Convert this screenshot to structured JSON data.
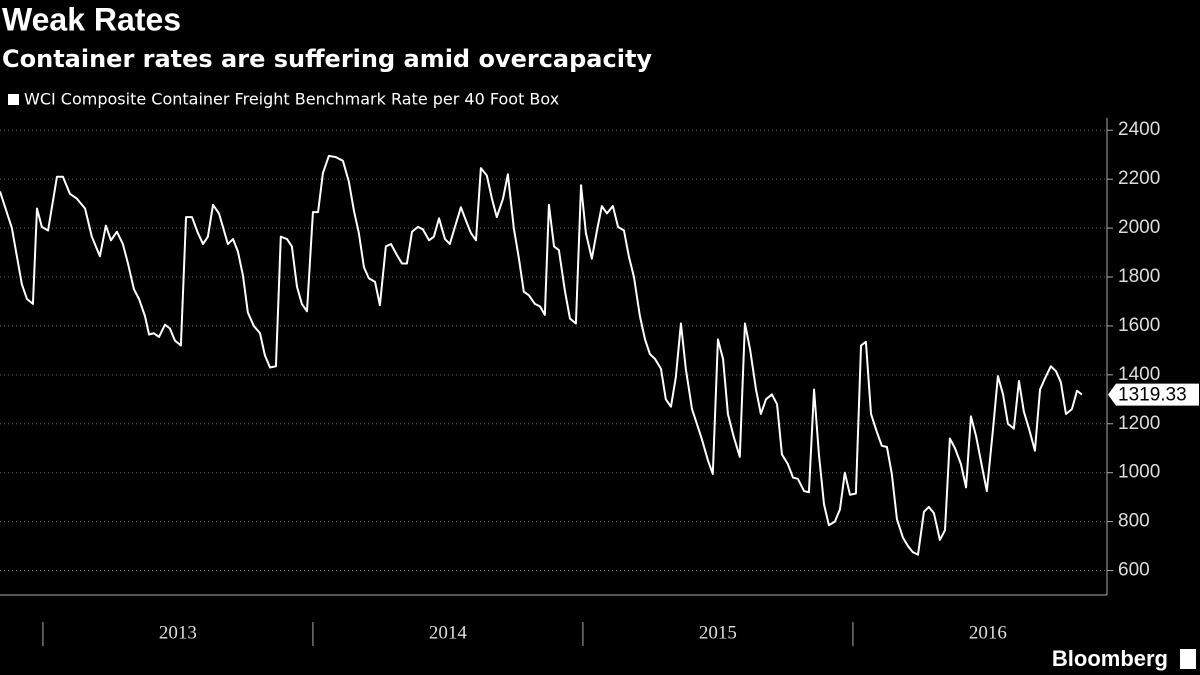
{
  "chart_data": {
    "type": "line",
    "title": "Weak Rates",
    "subtitle": "Container rates are suffering amid overcapacity",
    "source": "Bloomberg",
    "x": [
      2012.841,
      2012.885,
      2012.922,
      2012.941,
      2012.963,
      2012.978,
      2012.996,
      2013.019,
      2013.052,
      2013.074,
      2013.1,
      2013.126,
      2013.156,
      2013.181,
      2013.211,
      2013.233,
      2013.252,
      2013.274,
      2013.296,
      2013.315,
      2013.337,
      2013.356,
      2013.378,
      2013.393,
      2013.411,
      2013.43,
      2013.452,
      2013.47,
      2013.489,
      2013.511,
      2013.53,
      2013.552,
      2013.574,
      2013.593,
      2013.611,
      2013.63,
      2013.652,
      2013.685,
      2013.704,
      2013.722,
      2013.741,
      2013.759,
      2013.781,
      2013.804,
      2013.822,
      2013.841,
      2013.863,
      2013.881,
      2013.904,
      2013.922,
      2013.941,
      2013.959,
      2013.978,
      2014.0,
      2014.019,
      2014.037,
      2014.059,
      2014.085,
      2014.111,
      2014.133,
      2014.152,
      2014.17,
      2014.189,
      2014.207,
      2014.23,
      2014.248,
      2014.27,
      2014.289,
      2014.311,
      2014.33,
      2014.348,
      2014.367,
      2014.389,
      2014.407,
      2014.43,
      2014.448,
      2014.467,
      2014.489,
      2014.507,
      2014.526,
      2014.548,
      2014.567,
      2014.585,
      2014.604,
      2014.622,
      2014.644,
      2014.663,
      2014.681,
      2014.704,
      2014.722,
      2014.744,
      2014.763,
      2014.781,
      2014.8,
      2014.822,
      2014.841,
      2014.859,
      2014.874,
      2014.893,
      2014.911,
      2014.933,
      2014.952,
      2014.974,
      2014.993,
      2015.011,
      2015.033,
      2015.052,
      2015.07,
      2015.089,
      2015.111,
      2015.13,
      2015.152,
      2015.17,
      2015.189,
      2015.211,
      2015.23,
      2015.248,
      2015.267,
      2015.289,
      2015.307,
      2015.326,
      2015.344,
      2015.363,
      2015.381,
      2015.404,
      2015.422,
      2015.441,
      2015.463,
      2015.481,
      2015.5,
      2015.519,
      2015.537,
      2015.559,
      2015.581,
      2015.6,
      2015.619,
      2015.641,
      2015.659,
      2015.678,
      2015.7,
      2015.719,
      2015.737,
      2015.759,
      2015.778,
      2015.796,
      2015.819,
      2015.837,
      2015.856,
      2015.874,
      2015.893,
      2015.911,
      2015.933,
      2015.952,
      2015.97,
      2015.989,
      2016.011,
      2016.03,
      2016.048,
      2016.067,
      2016.089,
      2016.107,
      2016.126,
      2016.144,
      2016.163,
      2016.185,
      2016.204,
      2016.222,
      2016.241,
      2016.263,
      2016.281,
      2016.3,
      2016.322,
      2016.341,
      2016.359,
      2016.378,
      2016.4,
      2016.419,
      2016.437,
      2016.456,
      2016.478,
      2016.496,
      2016.519,
      2016.537,
      2016.556,
      2016.574,
      2016.596,
      2016.615,
      2016.633,
      2016.652,
      2016.674,
      2016.693,
      2016.711,
      2016.733,
      2016.752,
      2016.77,
      2016.789,
      2016.811,
      2016.83,
      2016.848
    ],
    "series": [
      {
        "name": "WCI Composite Container Freight Benchmark Rate per 40 Foot Box",
        "color": "#ffffff",
        "values": [
          2150,
          2000,
          1770,
          1710,
          1690,
          2080,
          2005,
          1990,
          2210,
          2210,
          2140,
          2120,
          2080,
          1965,
          1885,
          2010,
          1950,
          1985,
          1935,
          1855,
          1750,
          1710,
          1640,
          1565,
          1570,
          1555,
          1605,
          1590,
          1540,
          1520,
          2045,
          2045,
          1980,
          1935,
          1965,
          2095,
          2060,
          1935,
          1955,
          1905,
          1805,
          1655,
          1600,
          1570,
          1480,
          1430,
          1435,
          1965,
          1955,
          1925,
          1760,
          1690,
          1660,
          2065,
          2065,
          2225,
          2295,
          2290,
          2275,
          2190,
          2070,
          1980,
          1840,
          1795,
          1780,
          1685,
          1925,
          1935,
          1890,
          1855,
          1855,
          1985,
          2005,
          1995,
          1950,
          1965,
          2040,
          1955,
          1935,
          2005,
          2085,
          2030,
          1980,
          1950,
          2245,
          2215,
          2120,
          2045,
          2120,
          2220,
          2000,
          1875,
          1740,
          1725,
          1690,
          1680,
          1645,
          2095,
          1925,
          1910,
          1745,
          1630,
          1610,
          2175,
          1980,
          1875,
          1990,
          2090,
          2060,
          2090,
          2005,
          1990,
          1885,
          1800,
          1640,
          1545,
          1485,
          1465,
          1425,
          1300,
          1270,
          1390,
          1610,
          1425,
          1260,
          1200,
          1135,
          1050,
          995,
          1545,
          1465,
          1240,
          1145,
          1065,
          1610,
          1505,
          1340,
          1240,
          1300,
          1320,
          1280,
          1075,
          1035,
          980,
          975,
          925,
          920,
          1340,
          1075,
          870,
          785,
          800,
          850,
          1000,
          910,
          915,
          1520,
          1535,
          1240,
          1165,
          1110,
          1105,
          995,
          810,
          735,
          700,
          675,
          665,
          840,
          860,
          835,
          725,
          765,
          1140,
          1100,
          1035,
          940,
          1230,
          1150,
          1025,
          925,
          1180,
          1395,
          1320,
          1200,
          1180,
          1375,
          1250,
          1180,
          1090,
          1340,
          1385,
          1435,
          1415,
          1370,
          1240,
          1260,
          1335,
          1319.33
        ]
      }
    ],
    "xlim": [
      2012.841,
      2016.941
    ],
    "xticks": [
      {
        "value": 2013,
        "label": "2013"
      },
      {
        "value": 2014,
        "label": "2014"
      },
      {
        "value": 2015,
        "label": "2015"
      },
      {
        "value": 2016,
        "label": "2016"
      }
    ],
    "ylim": [
      500,
      2450
    ],
    "yticks": [
      600,
      800,
      1000,
      1200,
      1400,
      1600,
      1800,
      2000,
      2200,
      2400
    ],
    "grid": true
  }
}
